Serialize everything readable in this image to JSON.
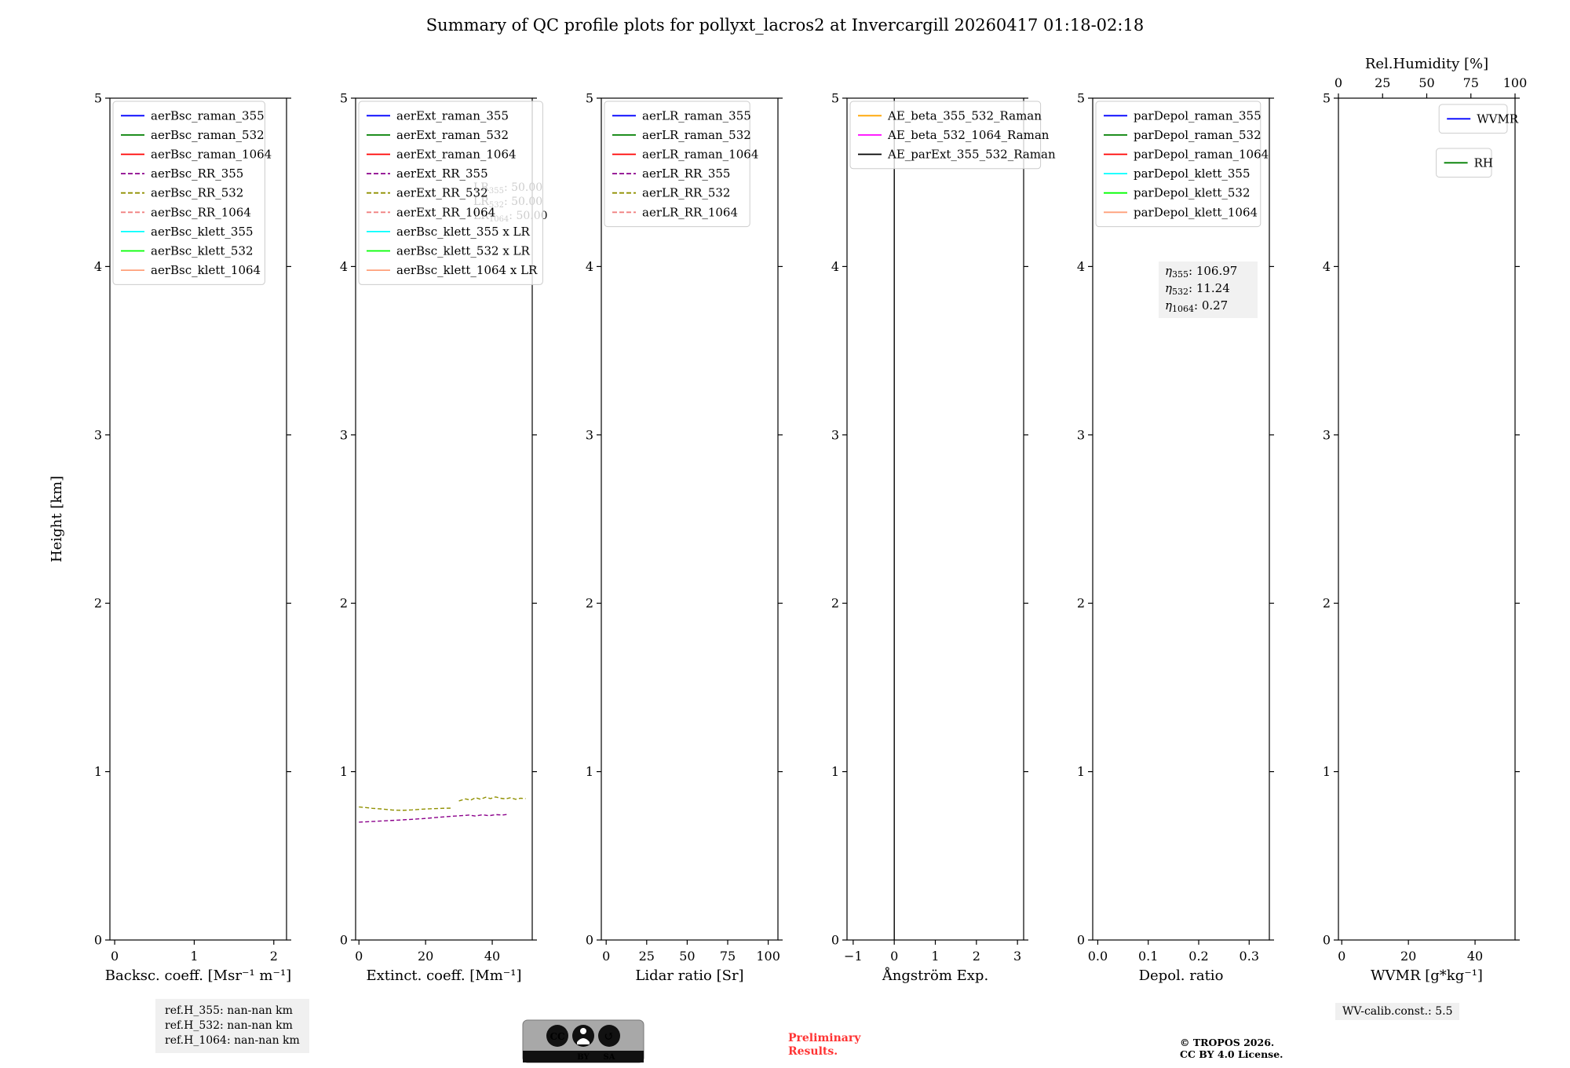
{
  "title": "Summary of QC profile plots for pollyxt_lacros2 at Invercargill 20260417 01:18-02:18",
  "ylabel": "Height [km]",
  "colors": {
    "preliminary": "#ff3333",
    "frame": "#000000",
    "annotation_gray": "#9e9e9e"
  },
  "footer": {
    "ref_lines": [
      "ref.H_355: nan-nan km",
      "ref.H_532: nan-nan km",
      "ref.H_1064: nan-nan km"
    ],
    "preliminary": [
      "Preliminary",
      "Results."
    ],
    "tropos": [
      "© TROPOS 2026.",
      "CC BY 4.0 License."
    ],
    "wv_calib": "WV-calib.const.: 5.5",
    "cc_badge": {
      "cc": "CC",
      "by": "BY",
      "sa": "SA",
      "share_icon": "↺"
    }
  },
  "chart_data": [
    {
      "name": "backscatter",
      "type": "line",
      "xlabel": "Backsc. coeff. [Msr⁻¹ m⁻¹]",
      "xlim": [
        -0.06,
        2.16
      ],
      "xticks": [
        0,
        1,
        2
      ],
      "xtick_labels": [
        "0",
        "1",
        "2"
      ],
      "ylim": [
        0,
        5
      ],
      "yticks": [
        0,
        1,
        2,
        3,
        4,
        5
      ],
      "ytick_labels": [
        "0",
        "1",
        "2",
        "3",
        "4",
        "5"
      ],
      "legends": [
        {
          "loc": "upper-left",
          "inset": [
            4,
            4
          ],
          "entries": [
            {
              "label": "aerBsc_raman_355",
              "color": "#0000ff",
              "style": "solid"
            },
            {
              "label": "aerBsc_raman_532",
              "color": "#007f00",
              "style": "solid"
            },
            {
              "label": "aerBsc_raman_1064",
              "color": "#ff0000",
              "style": "solid"
            },
            {
              "label": "aerBsc_RR_355",
              "color": "#8b008b",
              "style": "dashed"
            },
            {
              "label": "aerBsc_RR_532",
              "color": "#909000",
              "style": "dashed"
            },
            {
              "label": "aerBsc_RR_1064",
              "color": "#f08080",
              "style": "dashed"
            },
            {
              "label": "aerBsc_klett_355",
              "color": "#00ffff",
              "style": "solid"
            },
            {
              "label": "aerBsc_klett_532",
              "color": "#00ff00",
              "style": "solid"
            },
            {
              "label": "aerBsc_klett_1064",
              "color": "#ffa07a",
              "style": "solid"
            }
          ]
        }
      ],
      "series": []
    },
    {
      "name": "extinction",
      "type": "line",
      "xlabel": "Extinct. coeff. [Mm⁻¹]",
      "xlim": [
        -1,
        52
      ],
      "xticks": [
        0,
        20,
        40
      ],
      "xtick_labels": [
        "0",
        "20",
        "40"
      ],
      "ylim": [
        0,
        5
      ],
      "yticks": [
        0,
        1,
        2,
        3,
        4,
        5
      ],
      "ytick_labels": [
        "0",
        "1",
        "2",
        "3",
        "4",
        "5"
      ],
      "legends": [
        {
          "loc": "upper-left",
          "inset": [
            4,
            4
          ],
          "entries": [
            {
              "label": "aerExt_raman_355",
              "color": "#0000ff",
              "style": "solid"
            },
            {
              "label": "aerExt_raman_532",
              "color": "#007f00",
              "style": "solid"
            },
            {
              "label": "aerExt_raman_1064",
              "color": "#ff0000",
              "style": "solid"
            },
            {
              "label": "aerExt_RR_355",
              "color": "#8b008b",
              "style": "dashed"
            },
            {
              "label": "aerExt_RR_532",
              "color": "#909000",
              "style": "dashed"
            },
            {
              "label": "aerExt_RR_1064",
              "color": "#f08080",
              "style": "dashed"
            },
            {
              "label": "aerBsc_klett_355 x LR",
              "color": "#00ffff",
              "style": "solid"
            },
            {
              "label": "aerBsc_klett_532 x LR",
              "color": "#00ff00",
              "style": "solid"
            },
            {
              "label": "aerBsc_klett_1064 x LR",
              "color": "#ffa07a",
              "style": "solid"
            }
          ]
        }
      ],
      "gray_annotations": {
        "dx": 150,
        "dy": 118,
        "lines": [
          {
            "prefix": "LR",
            "sub": "355",
            "value": "50.00"
          },
          {
            "prefix": "LR",
            "sub": "532",
            "value": "50.00"
          },
          {
            "prefix": "LR",
            "sub": "1064",
            "value": "50.00"
          }
        ]
      },
      "series": [
        {
          "label": "aerExt_RR_532",
          "color": "#909000",
          "style": "dashed",
          "x": [
            0,
            2,
            4,
            7,
            10,
            13,
            16,
            19,
            22,
            25,
            28
          ],
          "y": [
            0.79,
            0.787,
            0.782,
            0.778,
            0.772,
            0.77,
            0.773,
            0.777,
            0.78,
            0.782,
            0.783
          ]
        },
        {
          "label": "aerExt_RR_532",
          "color": "#909000",
          "style": "dashed",
          "x": [
            30,
            32,
            33.5,
            35,
            36.5,
            38,
            39.5,
            41,
            42.5,
            44,
            45.5,
            47,
            48.5,
            50
          ],
          "y": [
            0.826,
            0.838,
            0.83,
            0.845,
            0.836,
            0.848,
            0.84,
            0.85,
            0.842,
            0.838,
            0.845,
            0.836,
            0.842,
            0.84
          ]
        },
        {
          "label": "aerExt_RR_355",
          "color": "#8b008b",
          "style": "dashed",
          "x": [
            0,
            4,
            8,
            12,
            16,
            20,
            24,
            28,
            31,
            33,
            35,
            37,
            39,
            41,
            43,
            45
          ],
          "y": [
            0.7,
            0.704,
            0.708,
            0.712,
            0.717,
            0.722,
            0.729,
            0.735,
            0.739,
            0.742,
            0.736,
            0.744,
            0.738,
            0.745,
            0.742,
            0.747
          ]
        }
      ]
    },
    {
      "name": "lidar-ratio",
      "type": "line",
      "xlabel": "Lidar ratio [Sr]",
      "xlim": [
        -3,
        106
      ],
      "xticks": [
        0,
        25,
        50,
        75,
        100
      ],
      "xtick_labels": [
        "0",
        "25",
        "50",
        "75",
        "100"
      ],
      "ylim": [
        0,
        5
      ],
      "yticks": [
        0,
        1,
        2,
        3,
        4,
        5
      ],
      "ytick_labels": [
        "0",
        "1",
        "2",
        "3",
        "4",
        "5"
      ],
      "legends": [
        {
          "loc": "upper-left",
          "inset": [
            4,
            4
          ],
          "entries": [
            {
              "label": "aerLR_raman_355",
              "color": "#0000ff",
              "style": "solid"
            },
            {
              "label": "aerLR_raman_532",
              "color": "#007f00",
              "style": "solid"
            },
            {
              "label": "aerLR_raman_1064",
              "color": "#ff0000",
              "style": "solid"
            },
            {
              "label": "aerLR_RR_355",
              "color": "#8b008b",
              "style": "dashed"
            },
            {
              "label": "aerLR_RR_532",
              "color": "#909000",
              "style": "dashed"
            },
            {
              "label": "aerLR_RR_1064",
              "color": "#f08080",
              "style": "dashed"
            }
          ]
        }
      ],
      "series": []
    },
    {
      "name": "angstrom",
      "type": "line",
      "xlabel": "Ångström Exp.",
      "xlim": [
        -1.15,
        3.15
      ],
      "xticks": [
        -1,
        0,
        1,
        2,
        3
      ],
      "xtick_labels": [
        "−1",
        "0",
        "1",
        "2",
        "3"
      ],
      "ylim": [
        0,
        5
      ],
      "yticks": [
        0,
        1,
        2,
        3,
        4,
        5
      ],
      "ytick_labels": [
        "0",
        "1",
        "2",
        "3",
        "4",
        "5"
      ],
      "legends": [
        {
          "loc": "upper-left",
          "inset": [
            4,
            4
          ],
          "entries": [
            {
              "label": "AE_beta_355_532_Raman",
              "color": "#ffa500",
              "style": "solid"
            },
            {
              "label": "AE_beta_532_1064_Raman",
              "color": "#ff00ff",
              "style": "solid"
            },
            {
              "label": "AE_parExt_355_532_Raman",
              "color": "#000000",
              "style": "solid"
            }
          ]
        }
      ],
      "series": [
        {
          "label": "AE_parExt_355_532_Raman",
          "color": "#000000",
          "style": "solid",
          "x": [
            0,
            0
          ],
          "y": [
            0,
            5
          ]
        }
      ]
    },
    {
      "name": "depol",
      "type": "line",
      "xlabel": "Depol. ratio",
      "xlim": [
        -0.01,
        0.34
      ],
      "xticks": [
        0,
        0.1,
        0.2,
        0.3
      ],
      "xtick_labels": [
        "0.0",
        "0.1",
        "0.2",
        "0.3"
      ],
      "ylim": [
        0,
        5
      ],
      "yticks": [
        0,
        1,
        2,
        3,
        4,
        5
      ],
      "ytick_labels": [
        "0",
        "1",
        "2",
        "3",
        "4",
        "5"
      ],
      "legends": [
        {
          "loc": "upper-left",
          "inset": [
            4,
            4
          ],
          "entries": [
            {
              "label": "parDepol_raman_355",
              "color": "#0000ff",
              "style": "solid"
            },
            {
              "label": "parDepol_raman_532",
              "color": "#007f00",
              "style": "solid"
            },
            {
              "label": "parDepol_raman_1064",
              "color": "#ff0000",
              "style": "solid"
            },
            {
              "label": "parDepol_klett_355",
              "color": "#00ffff",
              "style": "solid"
            },
            {
              "label": "parDepol_klett_532",
              "color": "#00ff00",
              "style": "solid"
            },
            {
              "label": "parDepol_klett_1064",
              "color": "#ffa07a",
              "style": "solid"
            }
          ]
        }
      ],
      "box_annotation": {
        "dx": 92,
        "dy": 225,
        "w": 126,
        "h": 72,
        "lines": [
          {
            "prefix": "η",
            "italic": true,
            "sub": "355",
            "value": "106.97"
          },
          {
            "prefix": "η",
            "italic": true,
            "sub": "532",
            "value": "11.24"
          },
          {
            "prefix": "η",
            "italic": true,
            "sub": "1064",
            "value": "0.27"
          }
        ]
      },
      "series": []
    },
    {
      "name": "wvmr",
      "type": "line",
      "xlabel": "WVMR [g*kg⁻¹]",
      "xlim": [
        -1,
        52
      ],
      "xticks": [
        0,
        20,
        40
      ],
      "xtick_labels": [
        "0",
        "20",
        "40"
      ],
      "ylim": [
        0,
        5
      ],
      "yticks": [
        0,
        1,
        2,
        3,
        4,
        5
      ],
      "ytick_labels": [
        "0",
        "1",
        "2",
        "3",
        "4",
        "5"
      ],
      "top_axis": {
        "label": "Rel.Humidity [%]",
        "lim": [
          0,
          100
        ],
        "ticks": [
          0,
          25,
          50,
          75,
          100
        ],
        "tick_labels": [
          "0",
          "25",
          "50",
          "75",
          "100"
        ]
      },
      "legends": [
        {
          "loc": "upper-right",
          "inset": [
            10,
            8
          ],
          "entries": [
            {
              "label": "WVMR",
              "color": "#0000ff",
              "style": "solid"
            }
          ]
        },
        {
          "loc": "upper-right",
          "inset": [
            30,
            64
          ],
          "entries": [
            {
              "label": "RH",
              "color": "#007f00",
              "style": "solid"
            }
          ]
        }
      ],
      "series": []
    }
  ]
}
